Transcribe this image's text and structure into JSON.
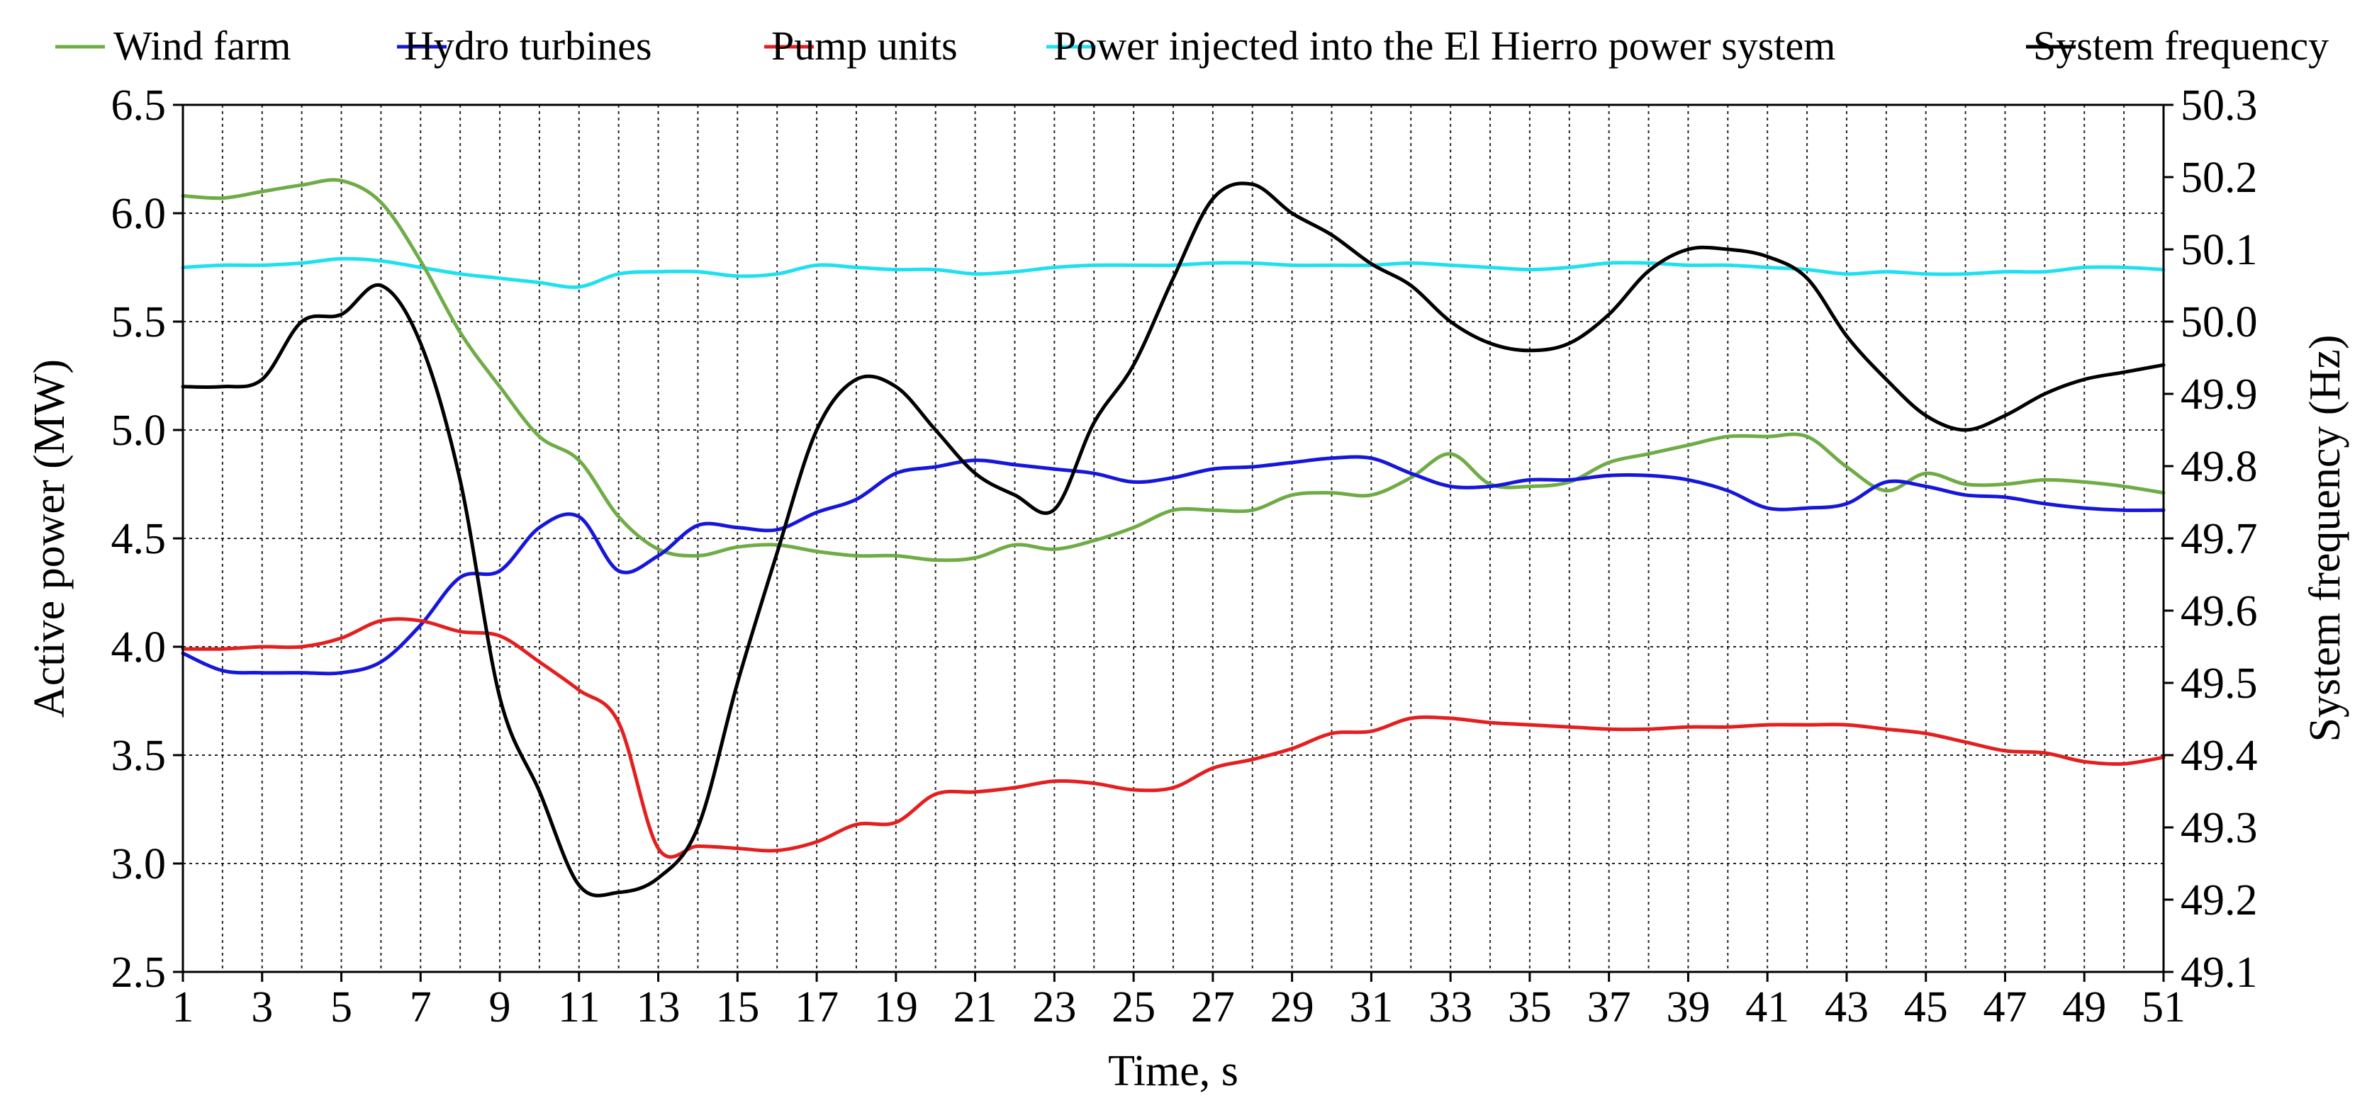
{
  "chart_data": {
    "type": "line",
    "xlabel": "Time, s",
    "ylabel": "Active power (MW)",
    "y2label": "System frequency (Hz)",
    "xlim": [
      1,
      51
    ],
    "ylim": [
      2.5,
      6.5
    ],
    "y2lim": [
      49.1,
      50.3
    ],
    "grid": true,
    "legend_position": "top",
    "x_ticks": [
      "1",
      "3",
      "5",
      "7",
      "9",
      "11",
      "13",
      "15",
      "17",
      "19",
      "21",
      "23",
      "25",
      "27",
      "29",
      "31",
      "33",
      "35",
      "37",
      "39",
      "41",
      "43",
      "45",
      "47",
      "49",
      "51"
    ],
    "y_ticks": [
      "2.5",
      "3.0",
      "3.5",
      "4.0",
      "4.5",
      "5.0",
      "5.5",
      "6.0",
      "6.5"
    ],
    "y2_ticks": [
      "49.1",
      "49.2",
      "49.3",
      "49.4",
      "49.5",
      "49.6",
      "49.7",
      "49.8",
      "49.9",
      "50.0",
      "50.1",
      "50.2",
      "50.3"
    ],
    "series": [
      {
        "name": "Wind farm",
        "color": "#6fac46",
        "axis": "left",
        "x": [
          1,
          2,
          3,
          4,
          5,
          6,
          7,
          8,
          9,
          10,
          11,
          12,
          13,
          14,
          15,
          16,
          17,
          18,
          19,
          20,
          21,
          22,
          23,
          24,
          25,
          26,
          27,
          28,
          29,
          30,
          31,
          32,
          33,
          34,
          35,
          36,
          37,
          38,
          39,
          40,
          41,
          42,
          43,
          44,
          45,
          46,
          47,
          48,
          49,
          50,
          51
        ],
        "values": [
          6.08,
          6.07,
          6.1,
          6.13,
          6.15,
          6.05,
          5.78,
          5.45,
          5.2,
          4.97,
          4.86,
          4.6,
          4.45,
          4.42,
          4.46,
          4.47,
          4.44,
          4.42,
          4.42,
          4.4,
          4.41,
          4.47,
          4.45,
          4.49,
          4.55,
          4.63,
          4.63,
          4.63,
          4.7,
          4.71,
          4.7,
          4.78,
          4.89,
          4.75,
          4.74,
          4.76,
          4.85,
          4.89,
          4.93,
          4.97,
          4.97,
          4.97,
          4.83,
          4.72,
          4.8,
          4.75,
          4.75,
          4.77,
          4.76,
          4.74,
          4.71
        ]
      },
      {
        "name": "Hydro turbines",
        "color": "#1616dc",
        "axis": "left",
        "x": [
          1,
          2,
          3,
          4,
          5,
          6,
          7,
          8,
          9,
          10,
          11,
          12,
          13,
          14,
          15,
          16,
          17,
          18,
          19,
          20,
          21,
          22,
          23,
          24,
          25,
          26,
          27,
          28,
          29,
          30,
          31,
          32,
          33,
          34,
          35,
          36,
          37,
          38,
          39,
          40,
          41,
          42,
          43,
          44,
          45,
          46,
          47,
          48,
          49,
          50,
          51
        ],
        "values": [
          3.97,
          3.89,
          3.88,
          3.88,
          3.88,
          3.93,
          4.1,
          4.32,
          4.35,
          4.55,
          4.6,
          4.35,
          4.42,
          4.56,
          4.55,
          4.54,
          4.62,
          4.68,
          4.8,
          4.83,
          4.86,
          4.84,
          4.82,
          4.8,
          4.76,
          4.78,
          4.82,
          4.83,
          4.85,
          4.87,
          4.87,
          4.8,
          4.74,
          4.74,
          4.77,
          4.77,
          4.79,
          4.79,
          4.77,
          4.72,
          4.64,
          4.64,
          4.66,
          4.76,
          4.74,
          4.7,
          4.69,
          4.66,
          4.64,
          4.63,
          4.63
        ]
      },
      {
        "name": "Pump units",
        "color": "#e41f1f",
        "axis": "left",
        "x": [
          1,
          2,
          3,
          4,
          5,
          6,
          7,
          8,
          9,
          10,
          11,
          12,
          13,
          14,
          15,
          16,
          17,
          18,
          19,
          20,
          21,
          22,
          23,
          24,
          25,
          26,
          27,
          28,
          29,
          30,
          31,
          32,
          33,
          34,
          35,
          36,
          37,
          38,
          39,
          40,
          41,
          42,
          43,
          44,
          45,
          46,
          47,
          48,
          49,
          50,
          51
        ],
        "values": [
          3.99,
          3.99,
          4.0,
          4.0,
          4.04,
          4.12,
          4.12,
          4.07,
          4.05,
          3.93,
          3.8,
          3.65,
          3.07,
          3.08,
          3.07,
          3.06,
          3.1,
          3.18,
          3.19,
          3.32,
          3.33,
          3.35,
          3.38,
          3.37,
          3.34,
          3.35,
          3.44,
          3.48,
          3.53,
          3.6,
          3.61,
          3.67,
          3.67,
          3.65,
          3.64,
          3.63,
          3.62,
          3.62,
          3.63,
          3.63,
          3.64,
          3.64,
          3.64,
          3.62,
          3.6,
          3.56,
          3.52,
          3.51,
          3.47,
          3.46,
          3.49
        ]
      },
      {
        "name": "Power  injected into the El Hierro power system",
        "color": "#1fe0ef",
        "axis": "left",
        "x": [
          1,
          2,
          3,
          4,
          5,
          6,
          7,
          8,
          9,
          10,
          11,
          12,
          13,
          14,
          15,
          16,
          17,
          18,
          19,
          20,
          21,
          22,
          23,
          24,
          25,
          26,
          27,
          28,
          29,
          30,
          31,
          32,
          33,
          34,
          35,
          36,
          37,
          38,
          39,
          40,
          41,
          42,
          43,
          44,
          45,
          46,
          47,
          48,
          49,
          50,
          51
        ],
        "values": [
          5.75,
          5.76,
          5.76,
          5.77,
          5.79,
          5.78,
          5.75,
          5.72,
          5.7,
          5.68,
          5.66,
          5.72,
          5.73,
          5.73,
          5.71,
          5.72,
          5.76,
          5.75,
          5.74,
          5.74,
          5.72,
          5.73,
          5.75,
          5.76,
          5.76,
          5.76,
          5.77,
          5.77,
          5.76,
          5.76,
          5.76,
          5.77,
          5.76,
          5.75,
          5.74,
          5.75,
          5.77,
          5.77,
          5.76,
          5.76,
          5.75,
          5.74,
          5.72,
          5.73,
          5.72,
          5.72,
          5.73,
          5.73,
          5.75,
          5.75,
          5.74
        ]
      },
      {
        "name": "System frequency",
        "color": "#000000",
        "axis": "right",
        "x": [
          1,
          2,
          3,
          4,
          5,
          6,
          7,
          8,
          9,
          10,
          11,
          12,
          13,
          14,
          15,
          16,
          17,
          18,
          19,
          20,
          21,
          22,
          23,
          24,
          25,
          26,
          27,
          28,
          29,
          30,
          31,
          32,
          33,
          34,
          35,
          36,
          37,
          38,
          39,
          40,
          41,
          42,
          43,
          44,
          45,
          46,
          47,
          48,
          49,
          50,
          51
        ],
        "values": [
          49.91,
          49.91,
          49.92,
          50.0,
          50.01,
          50.05,
          49.97,
          49.78,
          49.48,
          49.35,
          49.22,
          49.21,
          49.23,
          49.3,
          49.5,
          49.68,
          49.85,
          49.92,
          49.91,
          49.85,
          49.79,
          49.76,
          49.74,
          49.86,
          49.94,
          50.06,
          50.17,
          50.19,
          50.15,
          50.12,
          50.08,
          50.05,
          50.0,
          49.97,
          49.96,
          49.97,
          50.01,
          50.07,
          50.1,
          50.1,
          50.09,
          50.06,
          49.98,
          49.92,
          49.87,
          49.85,
          49.87,
          49.9,
          49.92,
          49.93,
          49.94
        ]
      }
    ]
  }
}
